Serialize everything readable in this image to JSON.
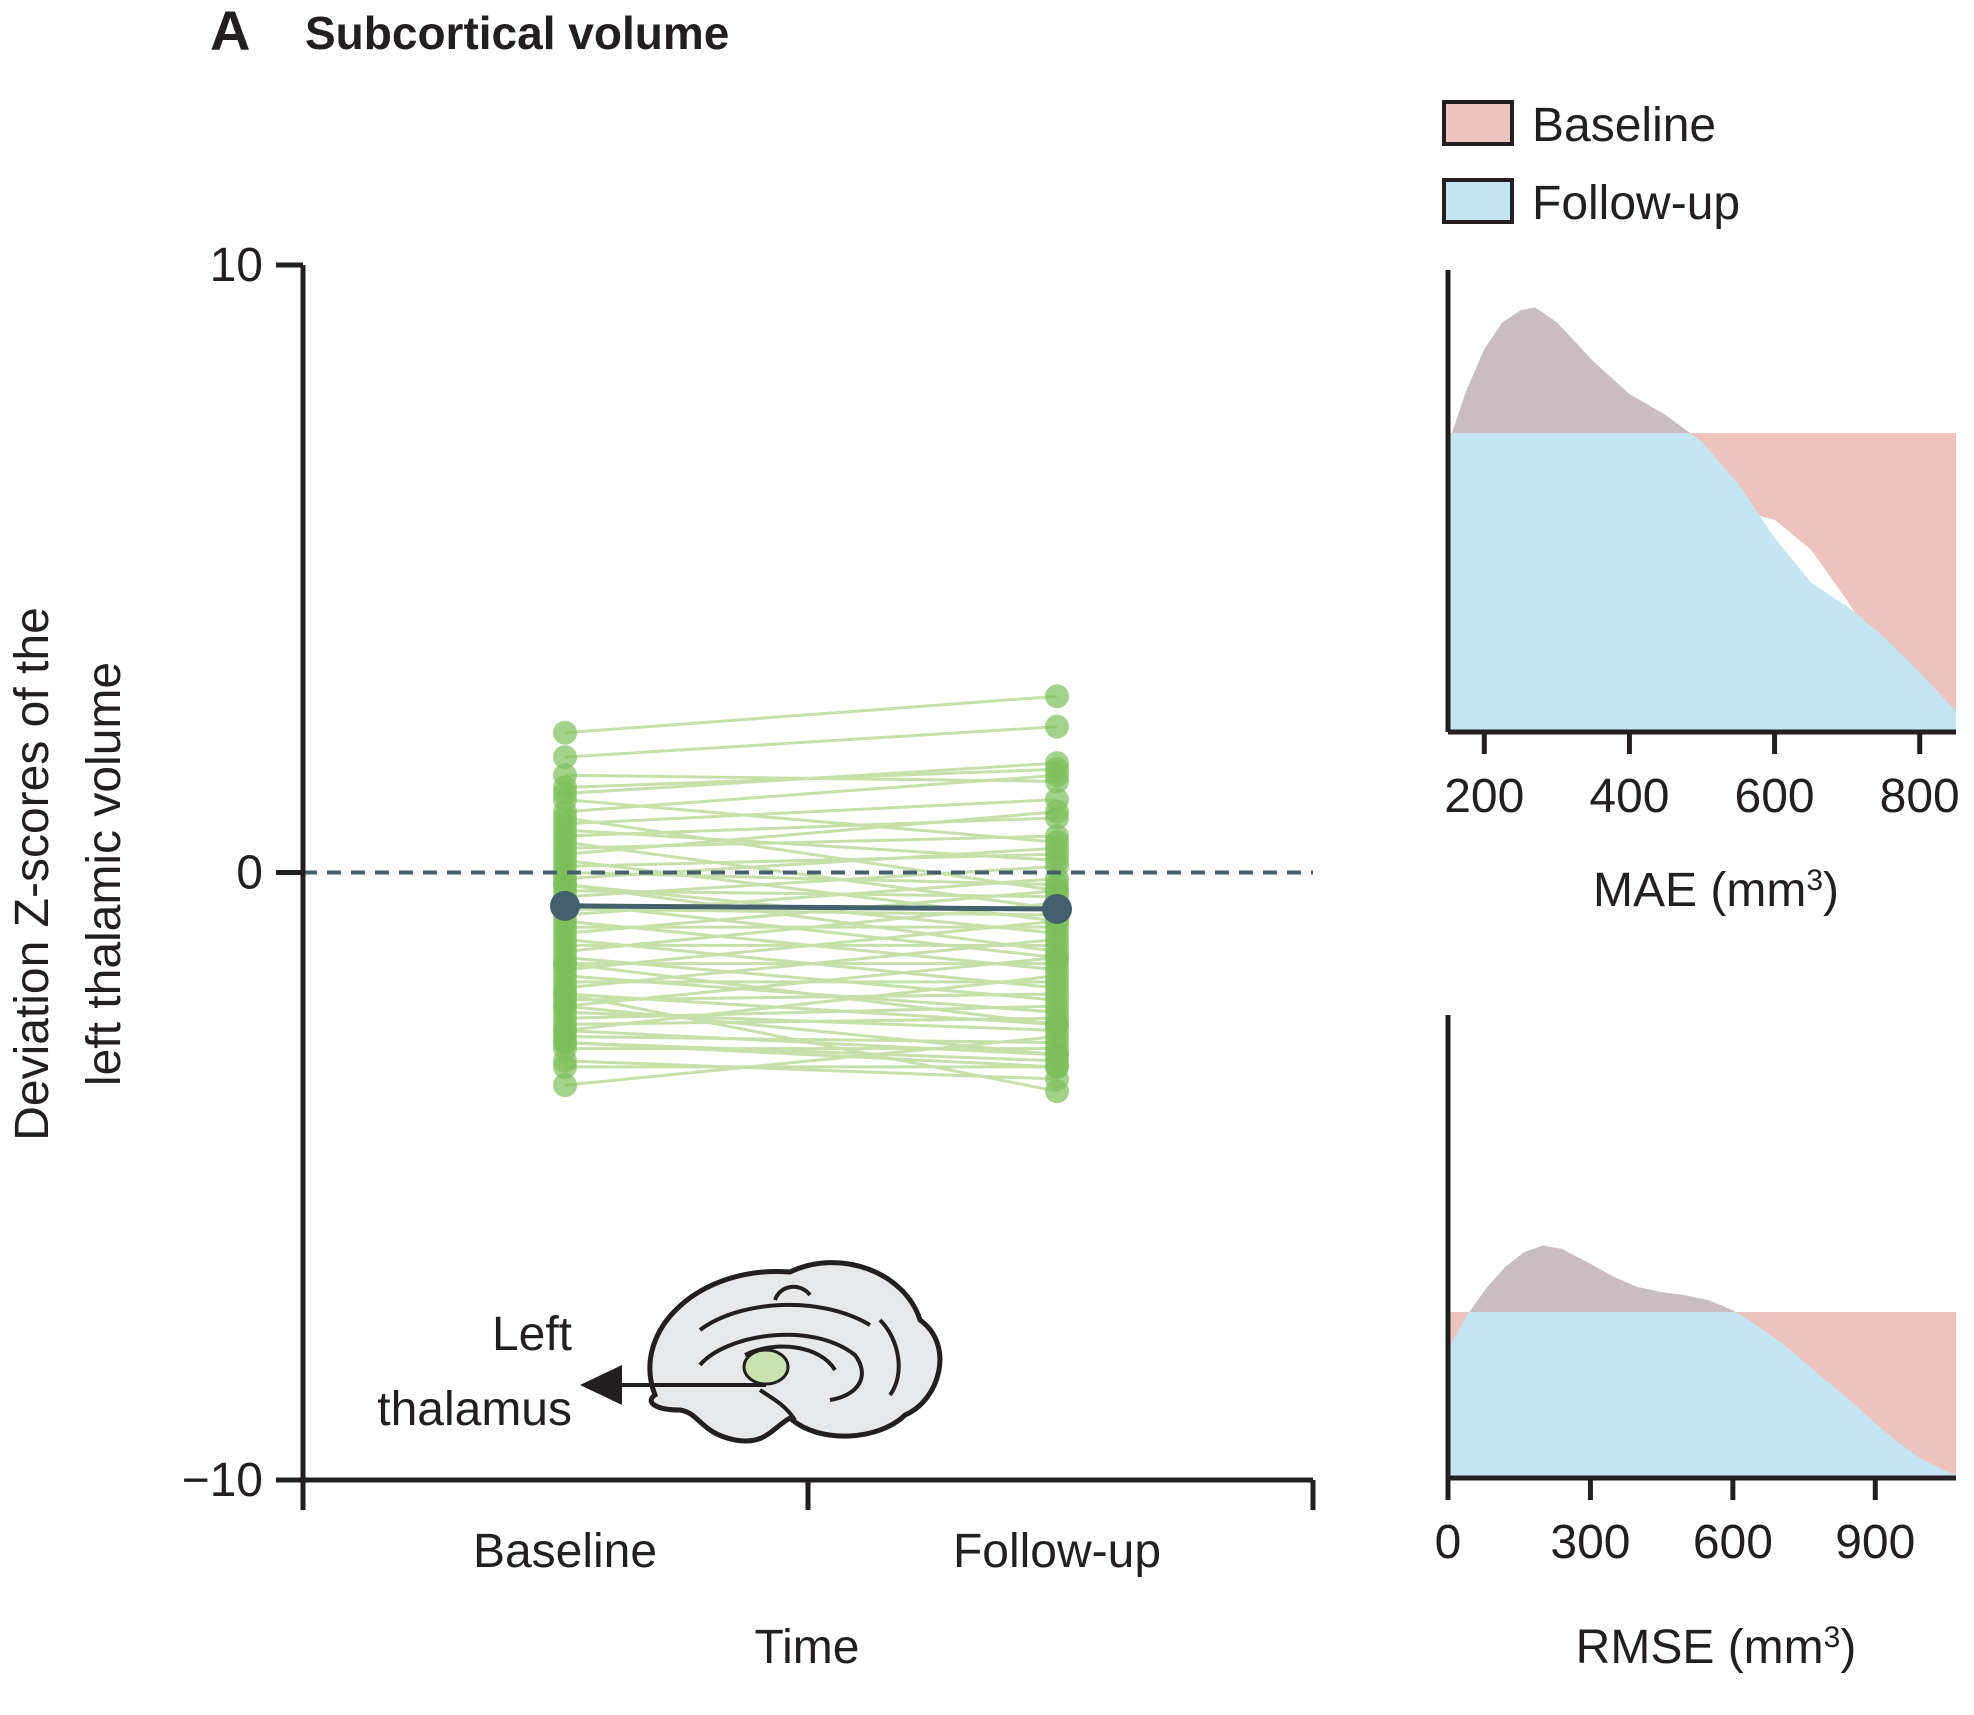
{
  "panel": {
    "letter": "A",
    "title": "Subcortical volume"
  },
  "colors": {
    "axis": "#231f20",
    "individual_line": "#c5e0a8",
    "individual_point": "#7cbf5a",
    "mean": "#44606c",
    "zero_line": "#44606c",
    "baseline_fill": "#ecc3bd",
    "followup_fill": "#c4e5f1",
    "overlap_fill": "#c8bdc1",
    "brain_fill": "#e6e8ea",
    "thalamus_fill": "#c9e3b0"
  },
  "chart_data": [
    {
      "type": "line",
      "name": "paired-z-scores",
      "categories": [
        "Baseline",
        "Follow-up"
      ],
      "xlabel": "Time",
      "ylabel": "Deviation Z-scores of the left thalamic volume",
      "ylabel_lines": [
        "Deviation Z-scores of the",
        "left thalamic volume"
      ],
      "ylim": [
        -10,
        10
      ],
      "yticks": [
        10,
        0,
        -10
      ],
      "ytick_labels": [
        "10",
        "0",
        "−10"
      ],
      "reference_line": {
        "y": 0,
        "style": "dashed"
      },
      "mean": {
        "values": [
          -0.55,
          -0.6
        ]
      },
      "paired_subjects": [
        [
          2.3,
          2.9
        ],
        [
          1.9,
          2.4
        ],
        [
          1.3,
          1.8
        ],
        [
          1.6,
          1.5
        ],
        [
          1.4,
          1.7
        ],
        [
          1.2,
          0.5
        ],
        [
          1.0,
          1.6
        ],
        [
          0.9,
          -0.3
        ],
        [
          0.8,
          1.2
        ],
        [
          0.7,
          0.2
        ],
        [
          0.6,
          0.9
        ],
        [
          0.5,
          -0.6
        ],
        [
          0.4,
          0.6
        ],
        [
          0.3,
          1.0
        ],
        [
          0.2,
          -0.8
        ],
        [
          0.1,
          0.3
        ],
        [
          0.0,
          -0.2
        ],
        [
          -0.1,
          0.4
        ],
        [
          -0.2,
          -1.0
        ],
        [
          -0.3,
          -0.4
        ],
        [
          -0.4,
          0.1
        ],
        [
          -0.5,
          -1.4
        ],
        [
          -0.6,
          -0.7
        ],
        [
          -0.7,
          -0.1
        ],
        [
          -0.8,
          -1.6
        ],
        [
          -0.9,
          -0.9
        ],
        [
          -1.0,
          -0.3
        ],
        [
          -1.1,
          -1.9
        ],
        [
          -1.2,
          -1.2
        ],
        [
          -1.3,
          -0.5
        ],
        [
          -1.4,
          -2.1
        ],
        [
          -1.5,
          -1.5
        ],
        [
          -1.6,
          -0.8
        ],
        [
          -1.7,
          -2.3
        ],
        [
          -1.8,
          -1.8
        ],
        [
          -1.9,
          -1.1
        ],
        [
          -2.0,
          -2.5
        ],
        [
          -2.1,
          -2.0
        ],
        [
          -2.2,
          -1.4
        ],
        [
          -2.3,
          -2.6
        ],
        [
          -2.4,
          -2.2
        ],
        [
          -2.5,
          -2.4
        ],
        [
          -2.6,
          -1.7
        ],
        [
          -2.7,
          -2.8
        ],
        [
          -2.2,
          -3.0
        ],
        [
          -2.6,
          -3.0
        ],
        [
          -2.9,
          -2.9
        ],
        [
          -3.1,
          -3.4
        ],
        [
          -2.8,
          -3.1
        ],
        [
          -3.2,
          -3.2
        ],
        [
          -2.0,
          -3.6
        ],
        [
          -3.5,
          -2.7
        ],
        [
          -2.8,
          -3.2
        ],
        [
          -1.5,
          -2.5
        ],
        [
          -0.2,
          -1.3
        ]
      ],
      "inset_label_lines": [
        "Left",
        "thalamus"
      ]
    },
    {
      "type": "area",
      "name": "mae-density",
      "xlabel": "MAE (mm",
      "xlabel_superscript": "3",
      "xlabel_suffix": ")",
      "xticks": [
        200,
        400,
        600,
        800
      ],
      "xlim": [
        150,
        850
      ],
      "series": [
        {
          "name": "Baseline",
          "x": [
            150,
            175,
            200,
            225,
            250,
            270,
            300,
            350,
            400,
            450,
            500,
            550,
            600,
            650,
            700,
            750,
            800,
            850
          ],
          "values": [
            0.62,
            0.82,
            0.9,
            0.96,
            1.0,
            1.0,
            0.97,
            0.9,
            0.84,
            0.79,
            0.76,
            0.74,
            0.71,
            0.61,
            0.44,
            0.25,
            0.13,
            0.05
          ]
        },
        {
          "name": "Follow-up",
          "x": [
            150,
            175,
            200,
            225,
            250,
            270,
            300,
            350,
            400,
            450,
            500,
            550,
            600,
            650,
            700,
            750,
            800,
            850
          ],
          "values": [
            0.96,
            1.14,
            1.28,
            1.37,
            1.41,
            1.42,
            1.37,
            1.24,
            1.13,
            1.06,
            0.97,
            0.83,
            0.65,
            0.5,
            0.42,
            0.32,
            0.2,
            0.07
          ]
        }
      ],
      "baselines": [
        1.0,
        0.0
      ]
    },
    {
      "type": "area",
      "name": "rmse-density",
      "xlabel": "RMSE (mm",
      "xlabel_superscript": "3",
      "xlabel_suffix": ")",
      "xticks": [
        0,
        300,
        600,
        900
      ],
      "xlim": [
        0,
        1070
      ],
      "series": [
        {
          "name": "Baseline",
          "x": [
            0,
            40,
            80,
            120,
            160,
            200,
            240,
            300,
            350,
            400,
            450,
            500,
            550,
            600,
            650,
            700,
            750,
            800,
            850,
            900,
            950,
            1000,
            1050,
            1070
          ],
          "values": [
            0.5,
            0.71,
            0.85,
            0.94,
            0.99,
            1.0,
            0.98,
            0.91,
            0.86,
            0.82,
            0.79,
            0.77,
            0.76,
            0.75,
            0.74,
            0.69,
            0.6,
            0.47,
            0.33,
            0.2,
            0.11,
            0.05,
            0.02,
            0.01
          ]
        },
        {
          "name": "Follow-up",
          "x": [
            0,
            40,
            80,
            120,
            160,
            200,
            240,
            300,
            350,
            400,
            450,
            500,
            550,
            600,
            650,
            700,
            750,
            800,
            850,
            900,
            950,
            1000,
            1050,
            1070
          ],
          "values": [
            0.78,
            0.98,
            1.14,
            1.27,
            1.36,
            1.4,
            1.38,
            1.29,
            1.21,
            1.15,
            1.12,
            1.1,
            1.07,
            1.01,
            0.92,
            0.82,
            0.7,
            0.58,
            0.46,
            0.33,
            0.21,
            0.11,
            0.04,
            0.02
          ]
        }
      ],
      "baselines": [
        1.0,
        0.0
      ]
    }
  ],
  "legend": {
    "position": "top-right",
    "items": [
      {
        "label": "Baseline",
        "color": "#ecc3bd"
      },
      {
        "label": "Follow-up",
        "color": "#c4e5f1"
      }
    ]
  }
}
